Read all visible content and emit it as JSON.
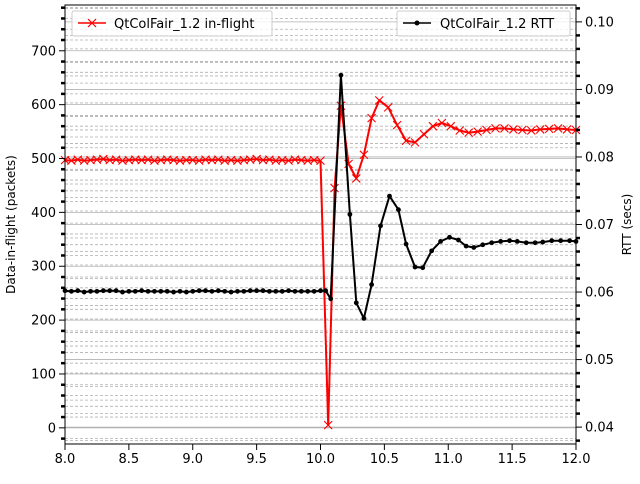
{
  "chart_data": {
    "type": "line",
    "title": "",
    "xlabel": "",
    "xlim": [
      8.0,
      12.0
    ],
    "xticks": [
      8.0,
      8.5,
      9.0,
      9.5,
      10.0,
      10.5,
      11.0,
      11.5,
      12.0
    ],
    "xtick_labels": [
      "8.0",
      "8.5",
      "9.0",
      "9.5",
      "10.0",
      "10.5",
      "11.0",
      "11.5",
      "12.0"
    ],
    "left_axis": {
      "label": "Data-in-flight (packets)",
      "ylim": [
        -30,
        785
      ],
      "ticks": [
        0,
        100,
        200,
        300,
        400,
        500,
        600,
        700
      ],
      "tick_labels": [
        "0",
        "100",
        "200",
        "300",
        "400",
        "500",
        "600",
        "700"
      ]
    },
    "right_axis": {
      "label": "RTT (secs)",
      "ylim": [
        0.0375,
        0.1025
      ],
      "ticks": [
        0.04,
        0.05,
        0.06,
        0.07,
        0.08,
        0.09,
        0.1
      ],
      "tick_labels": [
        "0.04",
        "0.05",
        "0.06",
        "0.07",
        "0.08",
        "0.09",
        "0.10"
      ]
    },
    "grid": true,
    "legend_placement": [
      "top-left",
      "top-right"
    ],
    "series": [
      {
        "name": "QtColFair_1.2 in-flight",
        "axis": "left",
        "color": "#ff0000",
        "marker": "x",
        "x": [
          8.0,
          8.05,
          8.1,
          8.15,
          8.2,
          8.25,
          8.3,
          8.35,
          8.4,
          8.45,
          8.5,
          8.55,
          8.6,
          8.65,
          8.7,
          8.75,
          8.8,
          8.85,
          8.9,
          8.95,
          9.0,
          9.05,
          9.1,
          9.15,
          9.2,
          9.25,
          9.3,
          9.35,
          9.4,
          9.45,
          9.5,
          9.55,
          9.6,
          9.65,
          9.7,
          9.75,
          9.8,
          9.85,
          9.9,
          9.95,
          10.0,
          10.06,
          10.11,
          10.16,
          10.22,
          10.28,
          10.34,
          10.4,
          10.46,
          10.53,
          10.6,
          10.67,
          10.74,
          10.81,
          10.88,
          10.95,
          11.02,
          11.09,
          11.16,
          11.23,
          11.3,
          11.37,
          11.44,
          11.51,
          11.58,
          11.65,
          11.72,
          11.79,
          11.86,
          11.93,
          12.0
        ],
        "values": [
          497,
          496,
          498,
          496,
          497,
          498,
          499,
          497,
          498,
          496,
          497,
          498,
          497,
          498,
          496,
          497,
          498,
          497,
          496,
          497,
          497,
          496,
          498,
          497,
          498,
          496,
          497,
          496,
          497,
          498,
          499,
          497,
          498,
          496,
          497,
          496,
          498,
          497,
          496,
          497,
          496,
          5,
          445,
          598,
          490,
          463,
          507,
          575,
          608,
          595,
          562,
          533,
          530,
          545,
          560,
          566,
          560,
          552,
          548,
          550,
          553,
          556,
          556,
          554,
          553,
          552,
          554,
          555,
          556,
          554,
          553
        ]
      },
      {
        "name": "QtColFair_1.2 RTT",
        "axis": "right",
        "color": "#000000",
        "marker": "o",
        "x": [
          8.0,
          8.05,
          8.1,
          8.15,
          8.2,
          8.25,
          8.3,
          8.35,
          8.4,
          8.45,
          8.5,
          8.55,
          8.6,
          8.65,
          8.7,
          8.75,
          8.8,
          8.85,
          8.9,
          8.95,
          9.0,
          9.05,
          9.1,
          9.15,
          9.2,
          9.25,
          9.3,
          9.35,
          9.4,
          9.45,
          9.5,
          9.55,
          9.6,
          9.65,
          9.7,
          9.75,
          9.8,
          9.85,
          9.9,
          9.95,
          10.0,
          10.04,
          10.08,
          10.16,
          10.23,
          10.28,
          10.34,
          10.4,
          10.47,
          10.54,
          10.61,
          10.67,
          10.74,
          10.8,
          10.87,
          10.94,
          11.01,
          11.08,
          11.14,
          11.2,
          11.27,
          11.34,
          11.41,
          11.48,
          11.54,
          11.61,
          11.68,
          11.74,
          11.81,
          11.88,
          11.95,
          12.0
        ],
        "values": [
          0.0602,
          0.0601,
          0.0602,
          0.06,
          0.0601,
          0.0601,
          0.0602,
          0.0602,
          0.0602,
          0.06,
          0.0601,
          0.0601,
          0.0602,
          0.0601,
          0.0601,
          0.0601,
          0.0601,
          0.06,
          0.0601,
          0.06,
          0.0601,
          0.0602,
          0.0602,
          0.0601,
          0.0602,
          0.0601,
          0.06,
          0.0601,
          0.0601,
          0.0602,
          0.0602,
          0.0602,
          0.0601,
          0.0601,
          0.0601,
          0.0602,
          0.0601,
          0.0601,
          0.0601,
          0.0601,
          0.0602,
          0.0602,
          0.059,
          0.0921,
          0.0715,
          0.0584,
          0.0561,
          0.0611,
          0.0698,
          0.0742,
          0.0722,
          0.0671,
          0.0637,
          0.0636,
          0.0661,
          0.0675,
          0.0681,
          0.0677,
          0.0668,
          0.0666,
          0.067,
          0.0673,
          0.0675,
          0.0676,
          0.0675,
          0.0673,
          0.0673,
          0.0674,
          0.0676,
          0.0676,
          0.0676,
          0.0675
        ]
      }
    ]
  }
}
